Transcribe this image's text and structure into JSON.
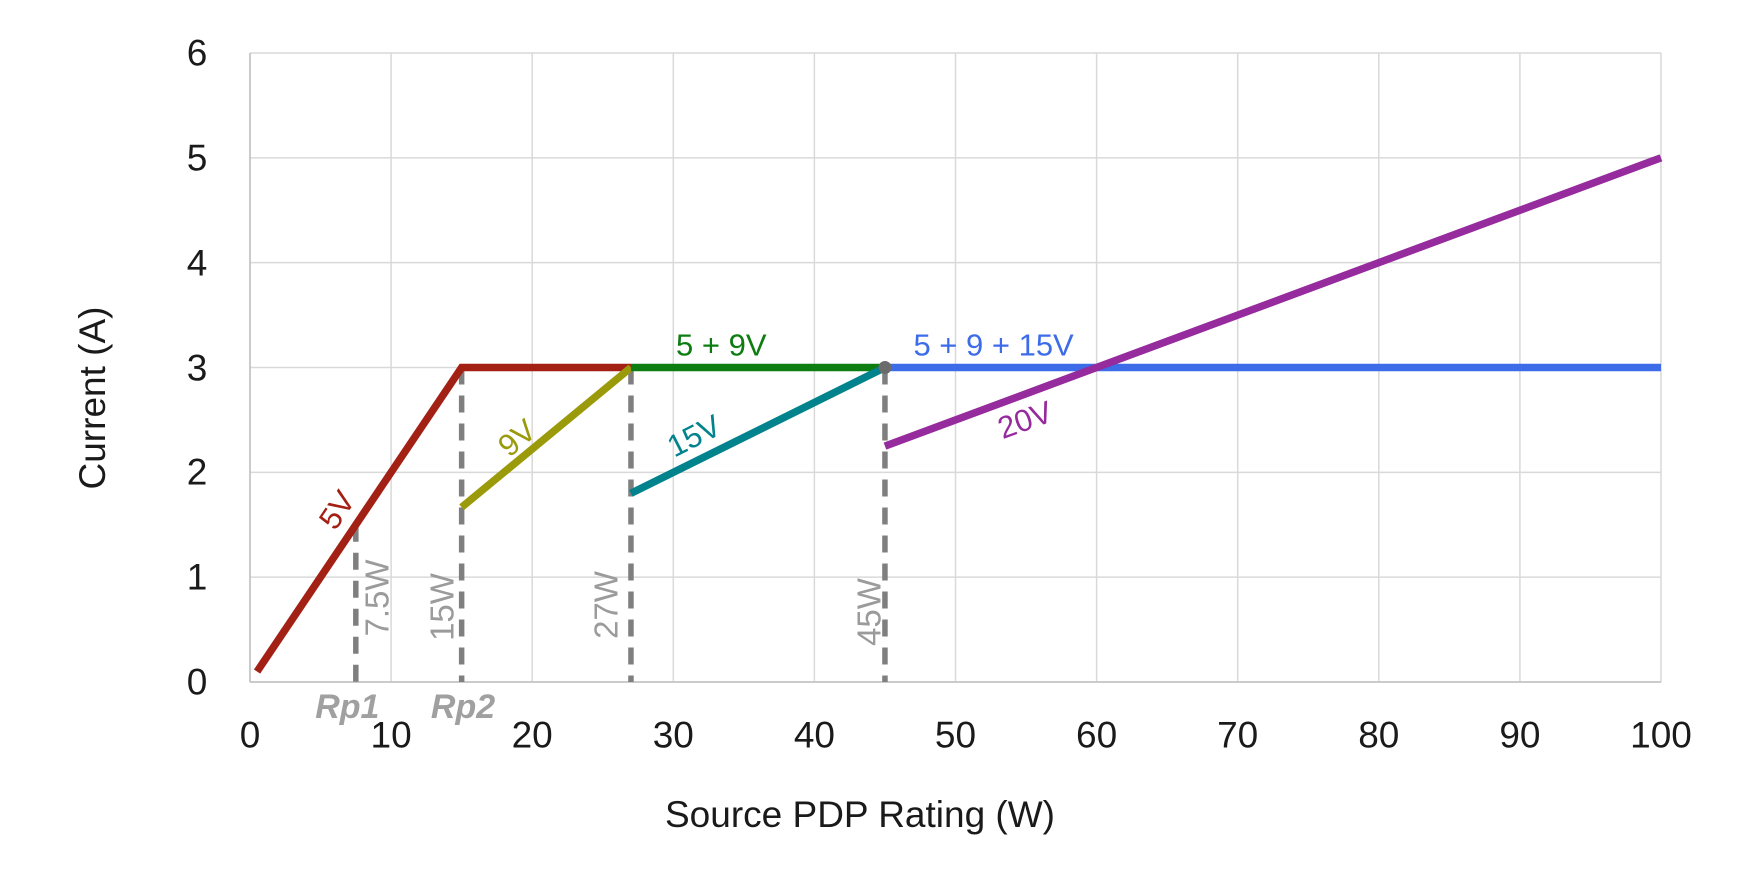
{
  "chart_data": {
    "type": "line",
    "title": "",
    "xlabel": "Source PDP Rating (W)",
    "ylabel": "Current (A)",
    "xlim": [
      0,
      100
    ],
    "ylim": [
      0,
      6
    ],
    "xticks": [
      0,
      10,
      20,
      30,
      40,
      50,
      60,
      70,
      80,
      90,
      100
    ],
    "yticks": [
      0,
      1,
      2,
      3,
      4,
      5,
      6
    ],
    "grid": true,
    "legend_position": "inline-annotations",
    "series": [
      {
        "name": "5V",
        "color": "#A32014",
        "points": [
          [
            0.5,
            0.1
          ],
          [
            15,
            3
          ],
          [
            27,
            3
          ]
        ]
      },
      {
        "name": "9V",
        "color": "#9A9A0A",
        "points": [
          [
            15,
            1.667
          ],
          [
            27,
            3
          ]
        ]
      },
      {
        "name": "5 + 9V",
        "color": "#0D7D12",
        "points": [
          [
            27,
            3
          ],
          [
            45,
            3
          ]
        ]
      },
      {
        "name": "15V",
        "color": "#00838C",
        "points": [
          [
            27,
            1.8
          ],
          [
            45,
            3
          ]
        ]
      },
      {
        "name": "5 + 9 + 15V",
        "color": "#3D6CE9",
        "points": [
          [
            45,
            3
          ],
          [
            100,
            3
          ]
        ]
      },
      {
        "name": "20V",
        "color": "#962B9E",
        "points": [
          [
            45,
            2.25
          ],
          [
            100,
            5
          ]
        ]
      }
    ],
    "guide_lines": [
      {
        "label": "7.5W",
        "x": 7.5,
        "y_top": 1.5
      },
      {
        "label": "15W",
        "x": 15,
        "y_top": 3
      },
      {
        "label": "27W",
        "x": 27,
        "y_top": 3
      },
      {
        "label": "45W",
        "x": 45,
        "y_top": 3
      }
    ],
    "markers": [
      {
        "x": 45,
        "y": 3,
        "color": "#6B6B6B"
      }
    ],
    "series_labels": [
      {
        "text": "5V",
        "x": 6.2,
        "y": 1.64,
        "rotate": -56,
        "color": "#A32014"
      },
      {
        "text": "9V",
        "x": 18.9,
        "y": 2.33,
        "rotate": -40,
        "color": "#9A9A0A"
      },
      {
        "text": "15V",
        "x": 31.5,
        "y": 2.35,
        "rotate": -27,
        "color": "#00838C"
      },
      {
        "text": "20V",
        "x": 54.9,
        "y": 2.5,
        "rotate": -20,
        "color": "#962B9E"
      },
      {
        "text": "5 + 9V",
        "x": 33.4,
        "y": 3.21,
        "rotate": 0,
        "color": "#0D7D12"
      },
      {
        "text": "5 + 9 + 15V",
        "x": 52.7,
        "y": 3.21,
        "rotate": 0,
        "color": "#3D6CE9"
      }
    ],
    "guide_labels": [
      {
        "text": "7.5W",
        "x": 9.0,
        "y": 0.8,
        "rotate": -90
      },
      {
        "text": "15W",
        "x": 13.6,
        "y": 0.72,
        "rotate": -90
      },
      {
        "text": "27W",
        "x": 25.2,
        "y": 0.73,
        "rotate": -90
      },
      {
        "text": "45W",
        "x": 43.9,
        "y": 0.67,
        "rotate": -90
      }
    ],
    "rp_labels": [
      {
        "text": "Rp1",
        "x": 6.9,
        "y": -0.24
      },
      {
        "text": "Rp2",
        "x": 15.1,
        "y": -0.24
      }
    ]
  },
  "style_colors": {
    "gridline": "#D9D9D9",
    "axis_line": "#C0C0C0",
    "guide_dash": "#7F7F7F",
    "tick_text": "#1a1a1a",
    "guide_text": "#9b9b9b"
  }
}
